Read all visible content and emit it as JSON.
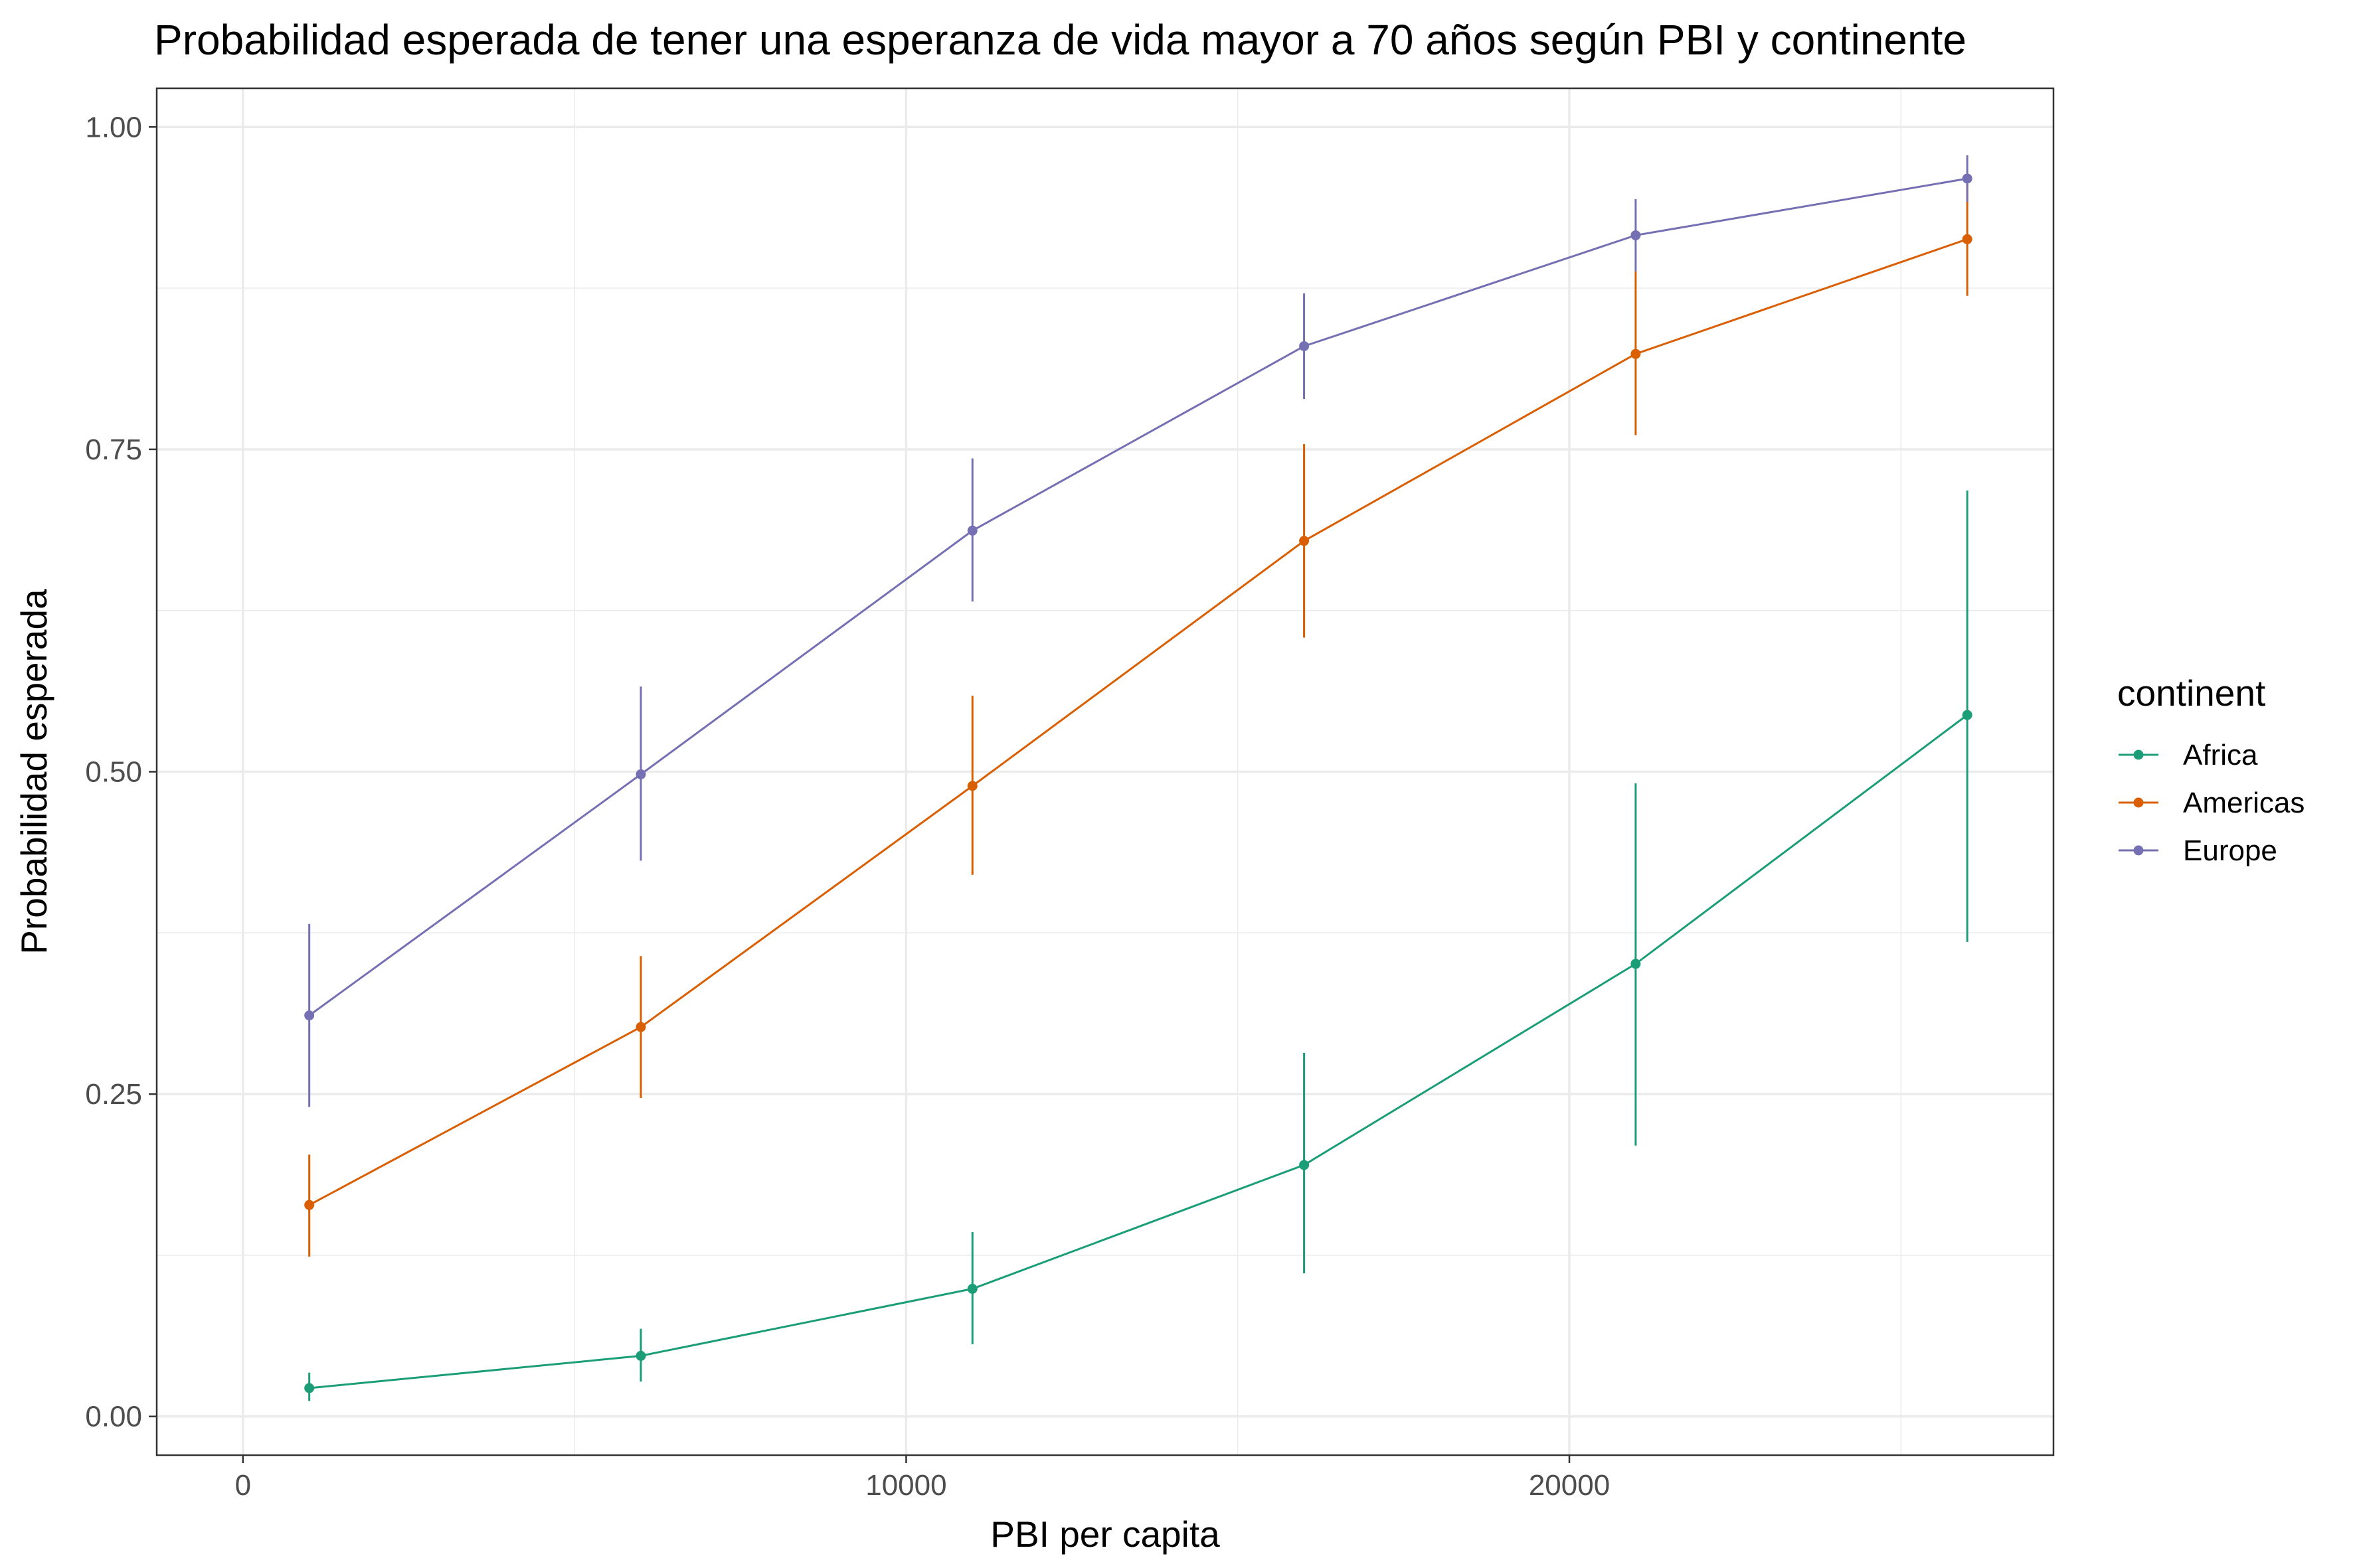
{
  "chart_data": {
    "type": "line",
    "title": "Probabilidad esperada de tener una esperanza de vida mayor a 70 años según PBI y continente",
    "xlabel": "PBI per capita",
    "ylabel": "Probabilidad esperada",
    "xlim": [
      -1300,
      27300
    ],
    "ylim": [
      -0.03,
      1.03
    ],
    "x_ticks": [
      0,
      10000,
      20000
    ],
    "x_tick_labels": [
      "0",
      "10000",
      "20000"
    ],
    "x_minor_ticks": [
      5000,
      15000,
      25000
    ],
    "y_ticks": [
      0,
      0.25,
      0.5,
      0.75,
      1.0
    ],
    "y_tick_labels": [
      "0.00",
      "0.25",
      "0.50",
      "0.75",
      "1.00"
    ],
    "y_minor_ticks": [
      0.125,
      0.375,
      0.625,
      0.875
    ],
    "grid": true,
    "legend_title": "continent",
    "legend_position": "right",
    "x": [
      1000,
      6000,
      11000,
      16000,
      21000,
      26000
    ],
    "series": [
      {
        "name": "Africa",
        "color": "#1b9e77",
        "values": [
          0.022,
          0.047,
          0.099,
          0.195,
          0.351,
          0.544
        ],
        "lower": [
          0.012,
          0.027,
          0.056,
          0.111,
          0.21,
          0.368
        ],
        "upper": [
          0.034,
          0.068,
          0.143,
          0.282,
          0.491,
          0.718
        ]
      },
      {
        "name": "Americas",
        "color": "#d95f02",
        "values": [
          0.164,
          0.302,
          0.489,
          0.679,
          0.824,
          0.913
        ],
        "lower": [
          0.124,
          0.247,
          0.42,
          0.604,
          0.761,
          0.869
        ],
        "upper": [
          0.203,
          0.357,
          0.559,
          0.754,
          0.888,
          0.956
        ]
      },
      {
        "name": "Europe",
        "color": "#7570b3",
        "values": [
          0.311,
          0.498,
          0.687,
          0.83,
          0.916,
          0.96
        ],
        "lower": [
          0.24,
          0.431,
          0.632,
          0.789,
          0.888,
          0.942
        ],
        "upper": [
          0.382,
          0.566,
          0.743,
          0.871,
          0.944,
          0.978
        ]
      }
    ]
  }
}
